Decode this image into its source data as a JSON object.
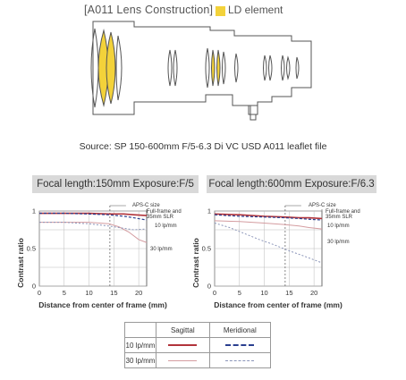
{
  "diagram": {
    "title": "[A011 Lens Construction]",
    "legend_label": "LD element",
    "ld_color": "#f3d23a",
    "source": "Source: SP 150-600mm F/5-6.3 Di VC USD A011 leaflet file"
  },
  "charts": {
    "left": {
      "header": "Focal length:150mm   Exposure:F/5"
    },
    "right": {
      "header": "Focal length:600mm   Exposure:F/6.3"
    },
    "labels": {
      "aps_c": "APS-C size",
      "ff_line1": "Full-frame and",
      "ff_line2": "35mm SLR",
      "lp10": "10 lp/mm",
      "lp30": "30 lp/mm",
      "ylabel": "Contrast ratio",
      "xlabel": "Distance from center of frame (mm)"
    },
    "legend": {
      "sagittal": "Sagittal",
      "meridional": "Meridional",
      "row10": "10 lp/mm",
      "row30": "30 lp/mm"
    }
  },
  "chart_data": [
    {
      "type": "line",
      "title": "Focal length:150mm   Exposure:F/5",
      "xlabel": "Distance from center of frame (mm)",
      "ylabel": "Contrast ratio",
      "xlim": [
        0,
        21.6
      ],
      "ylim": [
        0,
        1
      ],
      "x_ticks": [
        0,
        5,
        10,
        15,
        20
      ],
      "y_ticks": [
        0,
        0.25,
        0.5,
        0.75,
        1
      ],
      "y_tick_labels": [
        "0",
        "",
        "0.5",
        "",
        "1"
      ],
      "markers": {
        "aps_c": 14.2,
        "full_frame": 21.6
      },
      "series": [
        {
          "name": "10 lp/mm Sagittal",
          "x": [
            0,
            5,
            10,
            14,
            17,
            19,
            21.6
          ],
          "y": [
            0.97,
            0.97,
            0.97,
            0.96,
            0.96,
            0.95,
            0.94
          ]
        },
        {
          "name": "10 lp/mm Meridional",
          "x": [
            0,
            5,
            10,
            14,
            17,
            19,
            21.6
          ],
          "y": [
            0.97,
            0.97,
            0.96,
            0.95,
            0.93,
            0.91,
            0.88
          ]
        },
        {
          "name": "30 lp/mm Sagittal",
          "x": [
            0,
            5,
            10,
            14,
            16,
            18,
            20,
            21.6
          ],
          "y": [
            0.85,
            0.85,
            0.85,
            0.83,
            0.79,
            0.72,
            0.62,
            0.58
          ]
        },
        {
          "name": "30 lp/mm Meridional",
          "x": [
            0,
            5,
            10,
            14,
            17,
            19,
            21.6
          ],
          "y": [
            0.85,
            0.85,
            0.83,
            0.8,
            0.77,
            0.75,
            0.76
          ]
        }
      ]
    },
    {
      "type": "line",
      "title": "Focal length:600mm   Exposure:F/6.3",
      "xlabel": "Distance from center of frame (mm)",
      "ylabel": "Contrast ratio",
      "xlim": [
        0,
        21.6
      ],
      "ylim": [
        0,
        1
      ],
      "x_ticks": [
        0,
        5,
        10,
        15,
        20
      ],
      "y_ticks": [
        0,
        0.25,
        0.5,
        0.75,
        1
      ],
      "y_tick_labels": [
        "0",
        "",
        "0.5",
        "",
        "1"
      ],
      "markers": {
        "aps_c": 14.2,
        "full_frame": 21.6
      },
      "series": [
        {
          "name": "10 lp/mm Sagittal",
          "x": [
            0,
            5,
            10,
            14,
            17,
            19,
            21.6
          ],
          "y": [
            0.96,
            0.95,
            0.93,
            0.92,
            0.91,
            0.91,
            0.9
          ]
        },
        {
          "name": "10 lp/mm Meridional",
          "x": [
            0,
            5,
            10,
            14,
            17,
            19,
            21.6
          ],
          "y": [
            0.95,
            0.93,
            0.92,
            0.91,
            0.9,
            0.89,
            0.88
          ]
        },
        {
          "name": "30 lp/mm Sagittal",
          "x": [
            0,
            5,
            10,
            14,
            17,
            19,
            21.6
          ],
          "y": [
            0.87,
            0.86,
            0.84,
            0.82,
            0.8,
            0.78,
            0.76
          ]
        },
        {
          "name": "30 lp/mm Meridional",
          "x": [
            0,
            3,
            6,
            9,
            12,
            15,
            18,
            21.6
          ],
          "y": [
            0.84,
            0.78,
            0.7,
            0.62,
            0.55,
            0.47,
            0.4,
            0.31
          ]
        }
      ]
    }
  ]
}
